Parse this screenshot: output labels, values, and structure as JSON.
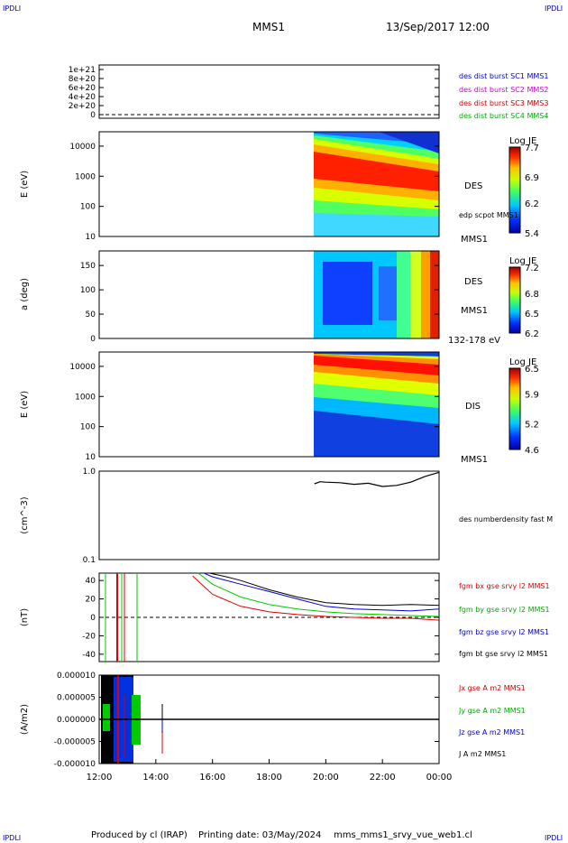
{
  "header": {
    "corner_tl": "IPDLI",
    "corner_tr": "IPDLI",
    "mission": "MMS1",
    "datetime": "13/Sep/2017 12:00",
    "corner_bl": "IPDLI",
    "corner_br": "IPDLI"
  },
  "footer": {
    "produced_by": "Produced by cl (IRAP)",
    "printing_date": "Printing date: 03/May/2024",
    "script_name": "mms_mms1_srvy_vue_web1.cl"
  },
  "colors": {
    "series_black": "#000000",
    "series_red": "#e00000",
    "series_green": "#00cc00",
    "series_blue": "#0000cc",
    "label_blue": "#0000cc",
    "label_magenta": "#cc00cc",
    "label_red": "#cc0000",
    "label_green": "#00aa00"
  },
  "chart_data": [
    {
      "type": "line",
      "panel": "dist-burst",
      "yticks": [
        "1e+21",
        "8e+20",
        "6e+20",
        "4e+20",
        "2e+20",
        "0"
      ],
      "ylim": [
        0,
        1.1e+21
      ],
      "legend": [
        {
          "name": "des dist burst SC1 MMS1",
          "color": "#0000cc"
        },
        {
          "name": "des dist burst SC2 MMS2",
          "color": "#cc00cc"
        },
        {
          "name": "des dist burst SC3 MMS3",
          "color": "#cc0000"
        },
        {
          "name": "des dist burst SC4 MMS4",
          "color": "#00aa00"
        }
      ]
    },
    {
      "type": "heatmap",
      "panel": "des-energy",
      "ylabel": "E (eV)",
      "yscale": "log",
      "ylim": [
        10,
        30000
      ],
      "yticks": [
        "10000",
        "1000",
        "100",
        "10"
      ],
      "data_start_hour": 19.6,
      "colorbar": {
        "title": "Log JE",
        "ticks": [
          "7.7",
          "6.9",
          "6.2",
          "5.4"
        ],
        "min": 5.4,
        "max": 7.7
      },
      "labels": [
        "DES",
        "edp scpot MMS1",
        "MMS1"
      ]
    },
    {
      "type": "heatmap",
      "panel": "des-pitch",
      "ylabel": "a (deg)",
      "ylim": [
        0,
        180
      ],
      "yticks": [
        "150",
        "100",
        "50",
        "0"
      ],
      "data_start_hour": 19.6,
      "colorbar": {
        "title": "Log JE",
        "ticks": [
          "7.2",
          "6.8",
          "6.5",
          "6.2"
        ],
        "min": 6.2,
        "max": 7.2
      },
      "labels": [
        "DES",
        "MMS1",
        "132-178 eV"
      ]
    },
    {
      "type": "heatmap",
      "panel": "dis-energy",
      "ylabel": "E (eV)",
      "yscale": "log",
      "ylim": [
        10,
        30000
      ],
      "yticks": [
        "10000",
        "1000",
        "100",
        "10"
      ],
      "data_start_hour": 19.6,
      "colorbar": {
        "title": "Log JE",
        "ticks": [
          "6.5",
          "5.9",
          "5.2",
          "4.6"
        ],
        "min": 4.6,
        "max": 6.5
      },
      "labels": [
        "DIS",
        "MMS1"
      ]
    },
    {
      "type": "line",
      "panel": "density",
      "ylabel": "(cm^-3)",
      "yscale": "log",
      "ylim": [
        0.1,
        1.0
      ],
      "yticks": [
        "1.0",
        "0.1"
      ],
      "series": [
        {
          "name": "des numberdensity fast M",
          "color": "#000000",
          "x": [
            19.6,
            19.8,
            20.0,
            20.5,
            21.0,
            21.5,
            22.0,
            22.5,
            23.0,
            23.5,
            24.0
          ],
          "y": [
            0.72,
            0.76,
            0.75,
            0.74,
            0.71,
            0.73,
            0.67,
            0.69,
            0.75,
            0.87,
            0.97
          ]
        }
      ]
    },
    {
      "type": "line",
      "panel": "magnetic-field",
      "ylabel": "(nT)",
      "ylim": [
        -48,
        48
      ],
      "yticks": [
        "40",
        "20",
        "0",
        "-20",
        "-40"
      ],
      "series": [
        {
          "name": "fgm bx gse srvy l2 MMS1",
          "color": "#e00000",
          "x": [
            15.3,
            16.0,
            17.0,
            18.0,
            19.0,
            20.0,
            21.0,
            22.0,
            23.0,
            24.0
          ],
          "y": [
            45,
            25,
            12,
            6,
            3,
            1,
            0,
            -1,
            -1,
            -3
          ]
        },
        {
          "name": "fgm by gse srvy l2 MMS1",
          "color": "#00cc00",
          "x": [
            15.5,
            16.0,
            17.0,
            18.0,
            19.0,
            20.0,
            21.0,
            22.0,
            23.0,
            24.0
          ],
          "y": [
            48,
            36,
            22,
            14,
            9,
            6,
            4,
            3,
            2,
            1
          ]
        },
        {
          "name": "fgm bz gse srvy l2 MMS1",
          "color": "#0000cc",
          "x": [
            15.7,
            16.0,
            17.0,
            18.0,
            19.0,
            20.0,
            21.0,
            22.0,
            23.0,
            24.0
          ],
          "y": [
            48,
            44,
            36,
            28,
            20,
            12,
            9,
            8,
            7,
            9
          ]
        },
        {
          "name": "fgm bt gse srvy l2 MMS1",
          "color": "#000000",
          "x": [
            15.9,
            16.5,
            17.0,
            18.0,
            19.0,
            20.0,
            21.0,
            22.0,
            23.0,
            24.0
          ],
          "y": [
            48,
            44,
            40,
            30,
            22,
            16,
            14,
            13,
            14,
            13
          ]
        }
      ]
    },
    {
      "type": "line",
      "panel": "current-density",
      "ylabel": "(A/m2)",
      "ylim": [
        -1e-05,
        1e-05
      ],
      "yticks": [
        "0.000010",
        "0.000005",
        "0.000000",
        "-0.000005",
        "-0.000010"
      ],
      "xticks": [
        "12:00",
        "14:00",
        "16:00",
        "18:00",
        "20:00",
        "22:00",
        "00:00"
      ],
      "xlim_hours": [
        12,
        24
      ],
      "legend": [
        {
          "name": "Jx gse A m2 MMS1",
          "color": "#cc0000"
        },
        {
          "name": "Jy gse A m2 MMS1",
          "color": "#00aa00"
        },
        {
          "name": "Jz gse A m2 MMS1",
          "color": "#0000cc"
        },
        {
          "name": "J A m2 MMS1",
          "color": "#000000"
        }
      ]
    }
  ]
}
